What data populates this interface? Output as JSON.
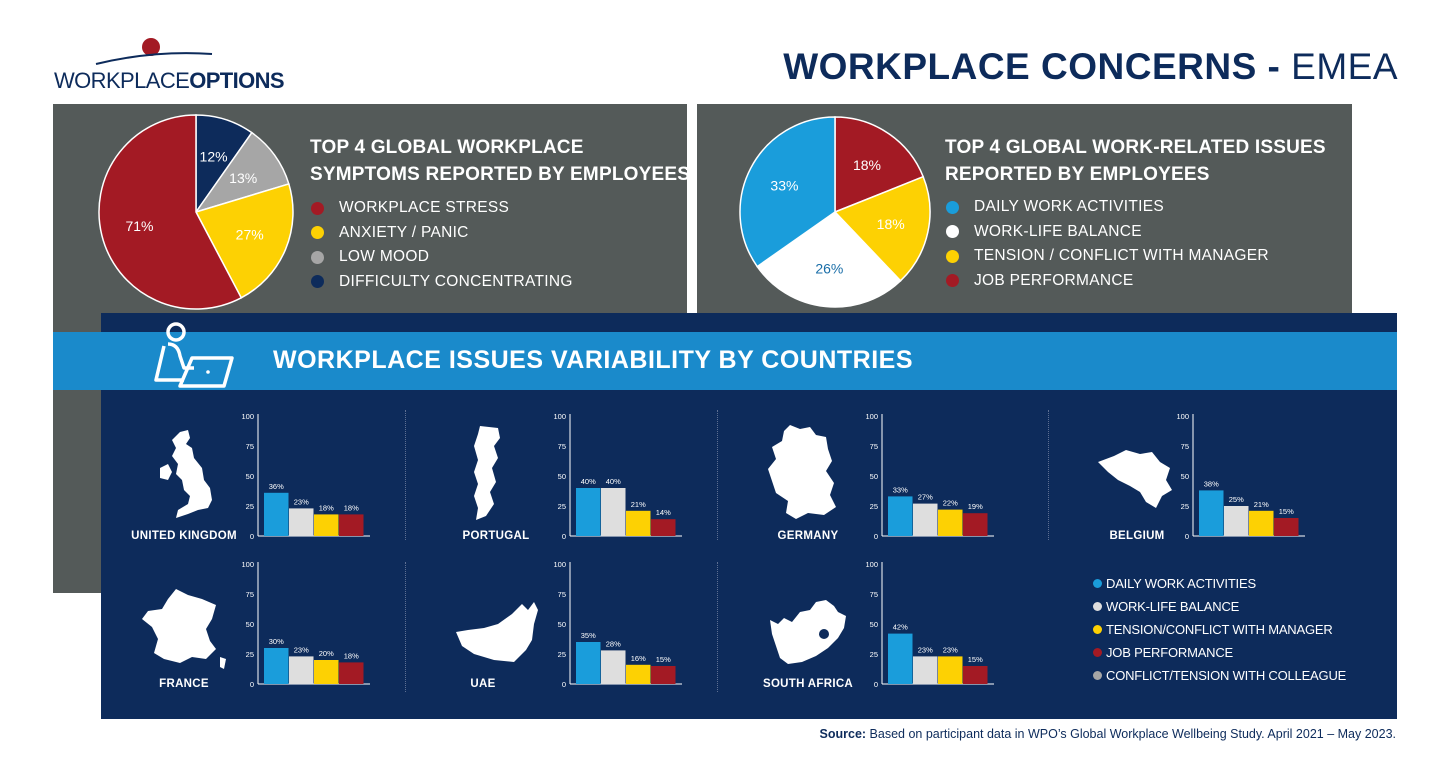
{
  "header": {
    "logo_word1": "WORKPLACE",
    "logo_word2": "OPTIONS",
    "title_bold": "WORKPLACE CONCERNS",
    "title_sep": " - ",
    "title_region": "EMEA"
  },
  "colors": {
    "red": "#a31a24",
    "yellow": "#fdd103",
    "grey": "#a6a6a6",
    "navy": "#0d2b5b",
    "blue": "#1a9ddb",
    "white": "#ffffff",
    "panel": "#545a59"
  },
  "band": {
    "title": "WORKPLACE ISSUES VARIABILITY BY COUNTRIES",
    "icon": "person-laptop-icon"
  },
  "chart_data": [
    {
      "type": "pie",
      "title": "TOP 4 GLOBAL WORKPLACE SYMPTOMS REPORTED BY EMPLOYEES",
      "title_lines": [
        "TOP 4 GLOBAL WORKPLACE",
        "SYMPTOMS REPORTED BY EMPLOYEES"
      ],
      "slices": [
        {
          "name": "WORKPLACE STRESS",
          "label": "71%",
          "value": 71,
          "color": "#a31a24"
        },
        {
          "name": "ANXIETY / PANIC",
          "label": "27%",
          "value": 27,
          "color": "#fdd103"
        },
        {
          "name": "LOW MOOD",
          "label": "13%",
          "value": 13,
          "color": "#a6a6a6"
        },
        {
          "name": "DIFFICULTY CONCENTRATING",
          "label": "12%",
          "value": 12,
          "color": "#0d2b5b"
        }
      ],
      "legend": "right"
    },
    {
      "type": "pie",
      "title": "TOP 4 GLOBAL WORK-RELATED ISSUES REPORTED BY EMPLOYEES",
      "title_lines": [
        "TOP 4 GLOBAL WORK-RELATED ISSUES",
        "REPORTED BY EMPLOYEES"
      ],
      "slices": [
        {
          "name": "DAILY WORK ACTIVITIES",
          "label": "33%",
          "value": 33,
          "color": "#1a9ddb"
        },
        {
          "name": "WORK-LIFE BALANCE",
          "label": "26%",
          "value": 26,
          "color": "#ffffff"
        },
        {
          "name": "TENSION / CONFLICT WITH MANAGER",
          "label": "18%",
          "value": 18,
          "color": "#fdd103"
        },
        {
          "name": "JOB PERFORMANCE",
          "label": "18%",
          "value": 18,
          "color": "#a31a24"
        }
      ],
      "legend": "right"
    },
    {
      "type": "bar",
      "title": "WORKPLACE ISSUES VARIABILITY BY COUNTRIES",
      "ylim": [
        0,
        100
      ],
      "yticks": [
        "100",
        "75",
        "50",
        "25",
        "0"
      ],
      "series_names": [
        "DAILY WORK ACTIVITIES",
        "WORK-LIFE BALANCE",
        "TENSION/CONFLICT WITH MANAGER",
        "JOB PERFORMANCE",
        "CONFLICT/TENSION WITH COLLEAGUE"
      ],
      "series_colors": [
        "#1a9ddb",
        "#dedede",
        "#fdd103",
        "#a31a24",
        "#a6a6a6"
      ],
      "countries": [
        {
          "name": "UNITED KINGDOM",
          "map_icon": "uk-map-icon",
          "values": [
            36,
            23,
            18,
            18
          ],
          "labels": [
            "36%",
            "23%",
            "18%",
            "18%"
          ]
        },
        {
          "name": "PORTUGAL",
          "map_icon": "portugal-map-icon",
          "values": [
            40,
            40,
            21,
            14
          ],
          "labels": [
            "40%",
            "40%",
            "21%",
            "14%"
          ]
        },
        {
          "name": "GERMANY",
          "map_icon": "germany-map-icon",
          "values": [
            33,
            27,
            22,
            19
          ],
          "labels": [
            "33%",
            "27%",
            "22%",
            "19%"
          ]
        },
        {
          "name": "BELGIUM",
          "map_icon": "belgium-map-icon",
          "values": [
            38,
            25,
            21,
            15
          ],
          "labels": [
            "38%",
            "25%",
            "21%",
            "15%"
          ]
        },
        {
          "name": "FRANCE",
          "map_icon": "france-map-icon",
          "values": [
            30,
            23,
            20,
            18
          ],
          "labels": [
            "30%",
            "23%",
            "20%",
            "18%"
          ]
        },
        {
          "name": "UAE",
          "map_icon": "uae-map-icon",
          "values": [
            35,
            28,
            16,
            15
          ],
          "labels": [
            "35%",
            "28%",
            "16%",
            "15%"
          ]
        },
        {
          "name": "SOUTH AFRICA",
          "map_icon": "south-africa-map-icon",
          "values": [
            42,
            23,
            23,
            15
          ],
          "labels": [
            "42%",
            "23%",
            "23%",
            "15%"
          ]
        }
      ],
      "legend": "bottom-right"
    }
  ],
  "source": {
    "label": "Source:",
    "text": " Based on participant data in WPO’s Global Workplace Wellbeing Study. April 2021 – May 2023."
  }
}
